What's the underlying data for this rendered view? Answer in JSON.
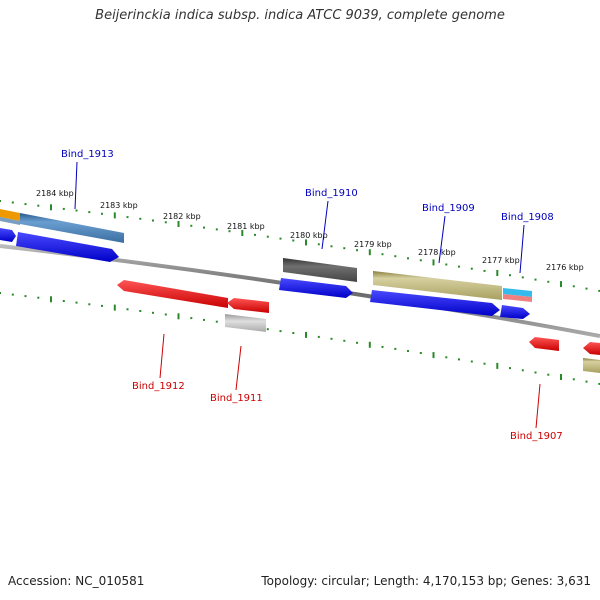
{
  "title": "Beijerinckia indica subsp. indica ATCC 9039, complete genome",
  "footer": {
    "accession": "Accession: NC_010581",
    "summary": "Topology: circular; Length: 4,170,153 bp; Genes: 3,631"
  },
  "scale_labels": [
    "2184 kbp",
    "2183 kbp",
    "2182 kbp",
    "2181 kbp",
    "2180 kbp",
    "2179 kbp",
    "2178 kbp",
    "2177 kbp",
    "2176 kbp"
  ],
  "gene_labels": [
    {
      "id": "Bind_1913",
      "color": "#0000bb"
    },
    {
      "id": "Bind_1910",
      "color": "#0000bb"
    },
    {
      "id": "Bind_1909",
      "color": "#0000bb"
    },
    {
      "id": "Bind_1908",
      "color": "#0000bb"
    },
    {
      "id": "Bind_1912",
      "color": "#cc0000"
    },
    {
      "id": "Bind_1911",
      "color": "#cc0000"
    },
    {
      "id": "Bind_1907",
      "color": "#cc0000"
    }
  ],
  "colors": {
    "forward_cds": "#1010ee",
    "reverse_cds": "#ee1111",
    "backbone": "#888888",
    "ticks": "#2a8a2a",
    "feature_olive": "#b8b070",
    "feature_steelblue": "#5a8ec0",
    "feature_gray": "#555555",
    "feature_cyan": "#33bbee",
    "feature_orange": "#ee9900",
    "feature_lightgray": "#bbbbbb"
  }
}
